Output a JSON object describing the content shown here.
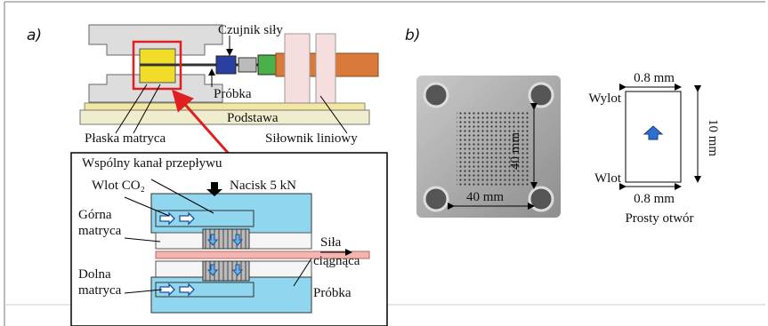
{
  "panel_a": {
    "label": "a)",
    "overview": {
      "czujnik": "Czujnik siły",
      "probka": "Próbka",
      "podstawa": "Podstawa",
      "plaska_matryca": "Płaska matryca",
      "silownik": "Siłownik liniowy"
    },
    "inset": {
      "kanal": "Wspólny kanał przepływu",
      "wlot": "Wlot CO₂",
      "nacisk": "Nacisk 5 kN",
      "gorna": [
        "Górna",
        "matryca"
      ],
      "sila": [
        "Siła",
        "ciągnąca"
      ],
      "dolna": [
        "Dolna",
        "matryca"
      ],
      "probka": "Próbka"
    }
  },
  "panel_b": {
    "label": "b)",
    "photo_height": "40 mm",
    "photo_width": "40 mm",
    "slot": {
      "top_width": "0.8 mm",
      "outlet": "Wylot",
      "length": "10 mm",
      "inlet": "Wlot",
      "bottom_width": "0.8 mm",
      "caption": "Prosty otwór"
    }
  }
}
